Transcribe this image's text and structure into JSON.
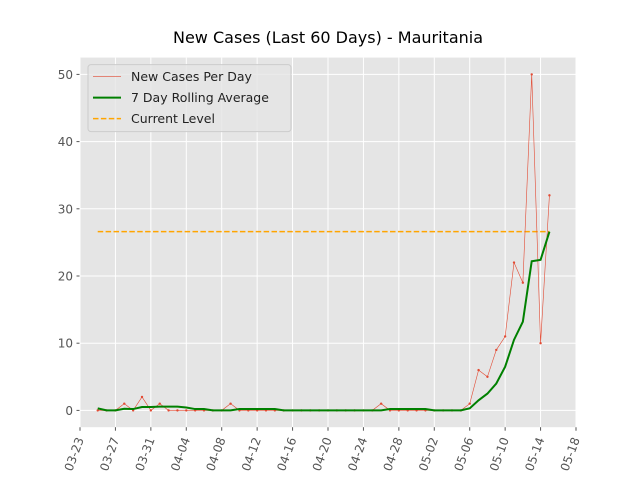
{
  "chart_data": {
    "type": "line",
    "title": "New Cases (Last 60 Days) - Mauritania",
    "x": [
      "03-25",
      "03-26",
      "03-27",
      "03-28",
      "03-29",
      "03-30",
      "03-31",
      "04-01",
      "04-02",
      "04-03",
      "04-04",
      "04-05",
      "04-06",
      "04-07",
      "04-08",
      "04-09",
      "04-10",
      "04-11",
      "04-12",
      "04-13",
      "04-14",
      "04-15",
      "04-16",
      "04-17",
      "04-18",
      "04-19",
      "04-20",
      "04-21",
      "04-22",
      "04-23",
      "04-24",
      "04-25",
      "04-26",
      "04-27",
      "04-28",
      "04-29",
      "04-30",
      "05-01",
      "05-02",
      "05-03",
      "05-04",
      "05-05",
      "05-06",
      "05-07",
      "05-08",
      "05-09",
      "05-10",
      "05-11",
      "05-12",
      "05-13",
      "05-14",
      "05-15"
    ],
    "series": [
      {
        "name": "New Cases Per Day",
        "color": "#e24a33",
        "style": "thin-marker",
        "values": [
          0,
          0,
          0,
          1,
          0,
          2,
          0,
          1,
          0,
          0,
          0,
          0,
          0,
          0,
          0,
          1,
          0,
          0,
          0,
          0,
          0,
          0,
          0,
          0,
          0,
          0,
          0,
          0,
          0,
          0,
          0,
          0,
          1,
          0,
          0,
          0,
          0,
          0,
          0,
          0,
          0,
          0,
          1,
          6,
          5,
          9,
          11,
          22,
          19,
          50,
          10,
          32
        ]
      },
      {
        "name": "7 Day Rolling Average",
        "color": "#008000",
        "style": "thick",
        "values": [
          0.3,
          0,
          0,
          0.25,
          0.2,
          0.5,
          0.5,
          0.57,
          0.57,
          0.57,
          0.43,
          0.2,
          0.2,
          0,
          0,
          0,
          0.2,
          0.2,
          0.2,
          0.2,
          0.2,
          0,
          0,
          0,
          0,
          0,
          0,
          0,
          0,
          0,
          0,
          0,
          0,
          0.2,
          0.2,
          0.2,
          0.2,
          0.2,
          0,
          0,
          0,
          0,
          0.3,
          1.5,
          2.5,
          4,
          6.5,
          10.5,
          13.2,
          22.2,
          22.4,
          26.6
        ]
      }
    ],
    "current_level": {
      "name": "Current Level",
      "color": "#ffa500",
      "value": 26.6
    },
    "xlim": [
      "03-23",
      "05-18"
    ],
    "xticks": [
      "03-23",
      "03-27",
      "03-31",
      "04-04",
      "04-08",
      "04-12",
      "04-16",
      "04-20",
      "04-24",
      "04-28",
      "05-02",
      "05-06",
      "05-10",
      "05-14",
      "05-18"
    ],
    "ylim": [
      -2.5,
      52.5
    ],
    "yticks": [
      0,
      10,
      20,
      30,
      40,
      50
    ],
    "grid": true,
    "legend": "upper left"
  }
}
